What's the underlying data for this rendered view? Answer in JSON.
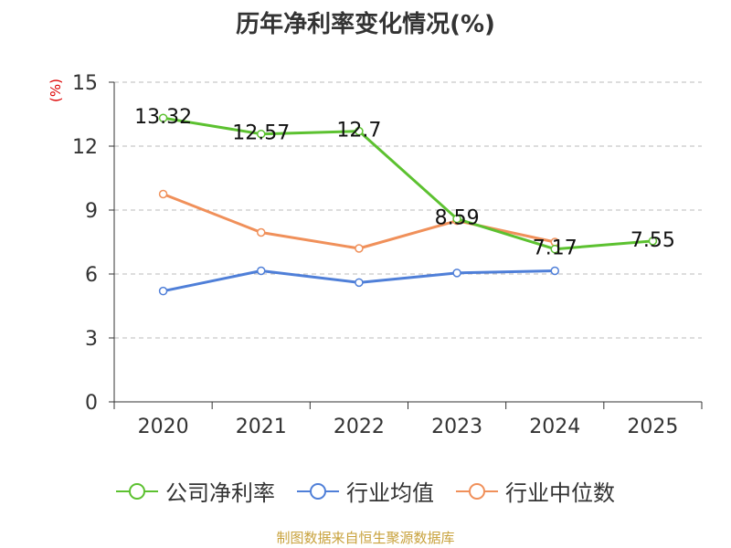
{
  "chart_data": {
    "type": "line",
    "title": "历年净利率变化情况(%)",
    "ylabel": "(%)",
    "xlabel": "",
    "ylim": [
      0,
      15
    ],
    "yticks": [
      0,
      3,
      6,
      9,
      12,
      15
    ],
    "categories": [
      "2020",
      "2021",
      "2022",
      "2023",
      "2024",
      "2025"
    ],
    "series": [
      {
        "name": "公司净利率",
        "color": "#5cc130",
        "values": [
          13.32,
          12.57,
          12.7,
          8.59,
          7.17,
          7.55
        ],
        "labels": [
          "13.32",
          "12.57",
          "12.7",
          "8.59",
          "7.17",
          "7.55"
        ]
      },
      {
        "name": "行业均值",
        "color": "#4f7fd8",
        "values": [
          5.2,
          6.15,
          5.6,
          6.05,
          6.15,
          null
        ]
      },
      {
        "name": "行业中位数",
        "color": "#f0905a",
        "values": [
          9.75,
          7.95,
          7.2,
          8.5,
          7.5,
          null
        ]
      }
    ],
    "grid": true,
    "legend_position": "bottom"
  },
  "source": "制图数据来自恒生聚源数据库"
}
